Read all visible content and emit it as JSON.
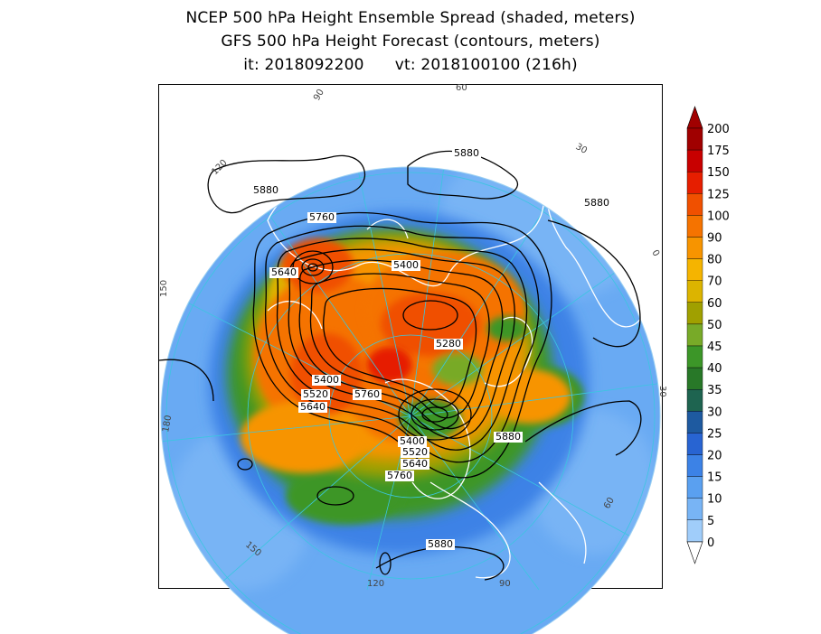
{
  "title": {
    "line1": "NCEP 500 hPa Height Ensemble Spread (shaded, meters)",
    "line2": "GFS 500 hPa Height Forecast (contours, meters)",
    "init_time": "it: 2018092200",
    "valid_time": "vt: 2018100100 (216h)"
  },
  "colorbar": {
    "levels": [
      "200",
      "175",
      "150",
      "125",
      "100",
      "90",
      "80",
      "70",
      "60",
      "50",
      "45",
      "40",
      "35",
      "30",
      "25",
      "20",
      "15",
      "10",
      "5",
      "0"
    ],
    "colors": [
      "#a00000",
      "#c80000",
      "#e61e00",
      "#f05000",
      "#f57300",
      "#f79400",
      "#f5b400",
      "#dcb400",
      "#a0a000",
      "#78aa28",
      "#3c9628",
      "#287828",
      "#1e6450",
      "#1e5aa0",
      "#2864d2",
      "#3c82e6",
      "#5aa0f0",
      "#78b4f5",
      "#a0cdfa",
      "#c8e1ff"
    ]
  },
  "contour_labels": [
    "5880",
    "5880",
    "5880",
    "5760",
    "5640",
    "5400",
    "5280",
    "5400",
    "5520",
    "5640",
    "5760",
    "5400",
    "5520",
    "5640",
    "5760",
    "5880",
    "5880"
  ],
  "longitude_labels": [
    "90",
    "60",
    "30",
    "0",
    "120",
    "150",
    "180",
    "150",
    "120",
    "90",
    "60",
    "30"
  ]
}
